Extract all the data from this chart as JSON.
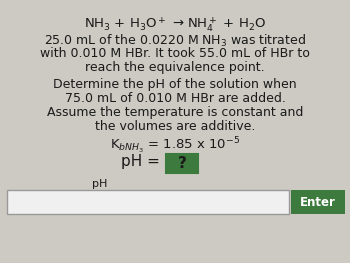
{
  "bg_color": "#cccac2",
  "title_line": "NH$_3$ + H$_3$O$^+$ → NH$_4^+$ + H$_2$O",
  "body_lines": [
    "25.0 mL of the 0.0220 M NH$_3$ was titrated",
    "with 0.010 M HBr. It took 55.0 mL of HBr to",
    "reach the equivalence point.",
    "Determine the pH of the solution when",
    "75.0 mL of 0.010 M HBr are added.",
    "Assume the temperature is constant and",
    "the volumes are additive."
  ],
  "kb_line": "K$_{bNH_3}$ = 1.85 x 10$^{-5}$",
  "ph_eq": "pH = ",
  "question_mark": "?",
  "input_label": "pH",
  "enter_text": "Enter",
  "enter_bg": "#3d7a3d",
  "enter_text_color": "#ffffff",
  "text_color": "#1a1a1a",
  "input_box_color": "#f0f0f0",
  "bracket_color": "#3d7a3d",
  "font_size_title": 9.5,
  "font_size_body": 9.0,
  "font_size_kb": 9.5,
  "font_size_ph": 11.0,
  "font_size_input_label": 8.0,
  "font_size_enter": 8.5
}
